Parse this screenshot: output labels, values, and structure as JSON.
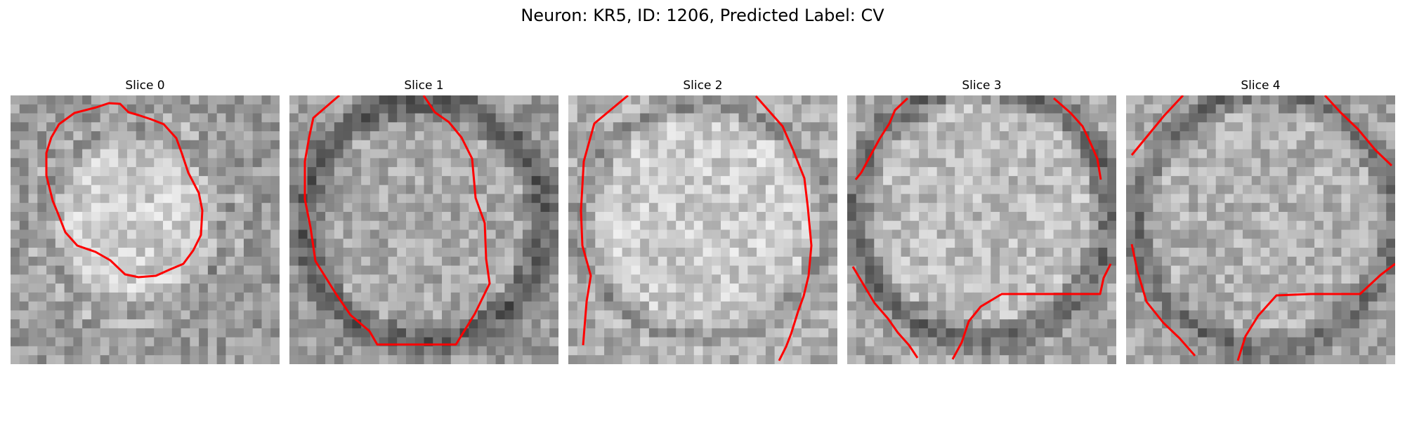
{
  "figure": {
    "title": "Neuron: KR5, ID: 1206, Predicted Label: CV"
  },
  "panels": [
    {
      "title": "Slice 0"
    },
    {
      "title": "Slice 1"
    },
    {
      "title": "Slice 2"
    },
    {
      "title": "Slice 3"
    },
    {
      "title": "Slice 4"
    }
  ],
  "colors": {
    "contour": "#ff0000"
  }
}
